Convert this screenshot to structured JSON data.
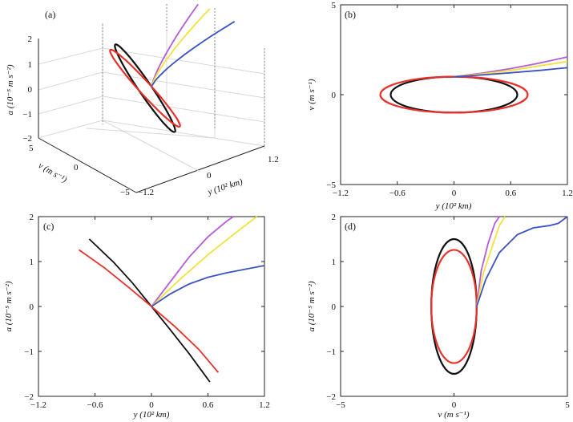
{
  "colors": {
    "black": "#111111",
    "red": "#e8302a",
    "purple": "#b45cd6",
    "yellow": "#f2e23c",
    "blue": "#3b52c4"
  },
  "chart_data": [
    {
      "panel": "(a)",
      "type": "line",
      "projection": "3d",
      "xlabel": "y (10² km)",
      "ylabel": "v (m s⁻¹)",
      "zlabel": "a (10⁻⁵ m s⁻²)",
      "x_ticks": [
        "−1.2",
        "0",
        "1.2"
      ],
      "y_ticks": [
        "5",
        "0",
        "−5"
      ],
      "z_ticks": [
        "2",
        "1",
        "0",
        "−1",
        "−2"
      ],
      "xlim": [
        -1.2,
        1.2
      ],
      "ylim": [
        -5,
        5
      ],
      "zlim": [
        -2,
        2
      ]
    },
    {
      "panel": "(b)",
      "type": "line",
      "xlabel": "y (10² km)",
      "ylabel": "v (m s⁻¹)",
      "xlim": [
        -1.2,
        1.2
      ],
      "ylim": [
        -5,
        5
      ],
      "x_ticks": [
        -1.2,
        -0.6,
        0,
        0.6,
        1.2
      ],
      "x_tick_labels": [
        "−1.2",
        "−0.6",
        "0",
        "0.6",
        "1.2"
      ],
      "y_ticks": [
        -5,
        0,
        5
      ],
      "y_tick_labels": [
        "−5",
        "0",
        "5"
      ],
      "series": [
        {
          "color": "black",
          "kind": "ellipse",
          "center": [
            0,
            0
          ],
          "rx": 0.67,
          "ry": 1.0
        },
        {
          "color": "red",
          "kind": "ellipse",
          "center": [
            0,
            0
          ],
          "rx": 0.78,
          "ry": 1.0
        },
        {
          "color": "purple",
          "x": [
            0,
            0.3,
            0.6,
            0.9,
            1.2
          ],
          "y": [
            1.0,
            1.2,
            1.45,
            1.75,
            2.1
          ]
        },
        {
          "color": "yellow",
          "x": [
            0,
            0.3,
            0.6,
            0.9,
            1.2
          ],
          "y": [
            1.0,
            1.15,
            1.35,
            1.6,
            1.85
          ]
        },
        {
          "color": "blue",
          "x": [
            0,
            0.3,
            0.6,
            0.9,
            1.2
          ],
          "y": [
            1.0,
            1.1,
            1.22,
            1.35,
            1.5
          ]
        }
      ]
    },
    {
      "panel": "(c)",
      "type": "line",
      "xlabel": "y (10² km)",
      "ylabel": "a (10⁻⁵ m s⁻²)",
      "xlim": [
        -1.2,
        1.2
      ],
      "ylim": [
        -2,
        2
      ],
      "x_ticks": [
        -1.2,
        -0.6,
        0,
        0.6,
        1.2
      ],
      "x_tick_labels": [
        "−1.2",
        "−0.6",
        "0",
        "0.6",
        "1.2"
      ],
      "y_ticks": [
        -2,
        -1,
        0,
        1,
        2
      ],
      "y_tick_labels": [
        "−2",
        "−1",
        "0",
        "1",
        "2"
      ],
      "series": [
        {
          "color": "black",
          "x": [
            -0.66,
            -0.4,
            -0.2,
            0,
            0.2,
            0.4,
            0.62
          ],
          "y": [
            1.5,
            0.98,
            0.52,
            0,
            -0.52,
            -1.05,
            -1.68
          ]
        },
        {
          "color": "red",
          "x": [
            -0.77,
            -0.5,
            -0.25,
            0,
            0.25,
            0.5,
            0.71
          ],
          "y": [
            1.26,
            0.86,
            0.44,
            0,
            -0.45,
            -0.95,
            -1.47
          ]
        },
        {
          "color": "purple",
          "x": [
            0,
            0.2,
            0.4,
            0.6,
            0.8,
            0.87
          ],
          "y": [
            0,
            0.55,
            1.1,
            1.55,
            1.9,
            2.0
          ]
        },
        {
          "color": "yellow",
          "x": [
            0,
            0.3,
            0.6,
            0.9,
            1.12
          ],
          "y": [
            0,
            0.6,
            1.15,
            1.65,
            2.0
          ]
        },
        {
          "color": "blue",
          "x": [
            0,
            0.2,
            0.4,
            0.6,
            0.8,
            1.0,
            1.2
          ],
          "y": [
            0,
            0.28,
            0.5,
            0.65,
            0.75,
            0.83,
            0.91
          ]
        }
      ]
    },
    {
      "panel": "(d)",
      "type": "line",
      "xlabel": "v (m s⁻¹)",
      "ylabel": "a (10⁻⁵ m s⁻²)",
      "xlim": [
        -5,
        5
      ],
      "ylim": [
        -2,
        2
      ],
      "x_ticks": [
        -5,
        0,
        5
      ],
      "x_tick_labels": [
        "−5",
        "0",
        "5"
      ],
      "y_ticks": [
        -2,
        -1,
        0,
        1,
        2
      ],
      "y_tick_labels": [
        "−2",
        "−1",
        "0",
        "1",
        "2"
      ],
      "series": [
        {
          "color": "black",
          "kind": "ellipse",
          "center": [
            0,
            0
          ],
          "rx": 1.0,
          "ry": 1.5
        },
        {
          "color": "red",
          "kind": "ellipse",
          "center": [
            0,
            0
          ],
          "rx": 1.0,
          "ry": 1.26
        },
        {
          "color": "purple",
          "x": [
            1.0,
            1.2,
            1.5,
            1.8,
            2.0
          ],
          "y": [
            0,
            0.8,
            1.4,
            1.85,
            2.0
          ]
        },
        {
          "color": "yellow",
          "x": [
            1.0,
            1.3,
            1.7,
            2.0,
            2.25
          ],
          "y": [
            0,
            0.75,
            1.35,
            1.8,
            2.0
          ]
        },
        {
          "color": "blue",
          "x": [
            1.0,
            1.4,
            2.0,
            2.8,
            3.5,
            4.2,
            4.6,
            5.0
          ],
          "y": [
            0,
            0.6,
            1.2,
            1.6,
            1.75,
            1.8,
            1.85,
            2.0
          ]
        }
      ]
    }
  ]
}
